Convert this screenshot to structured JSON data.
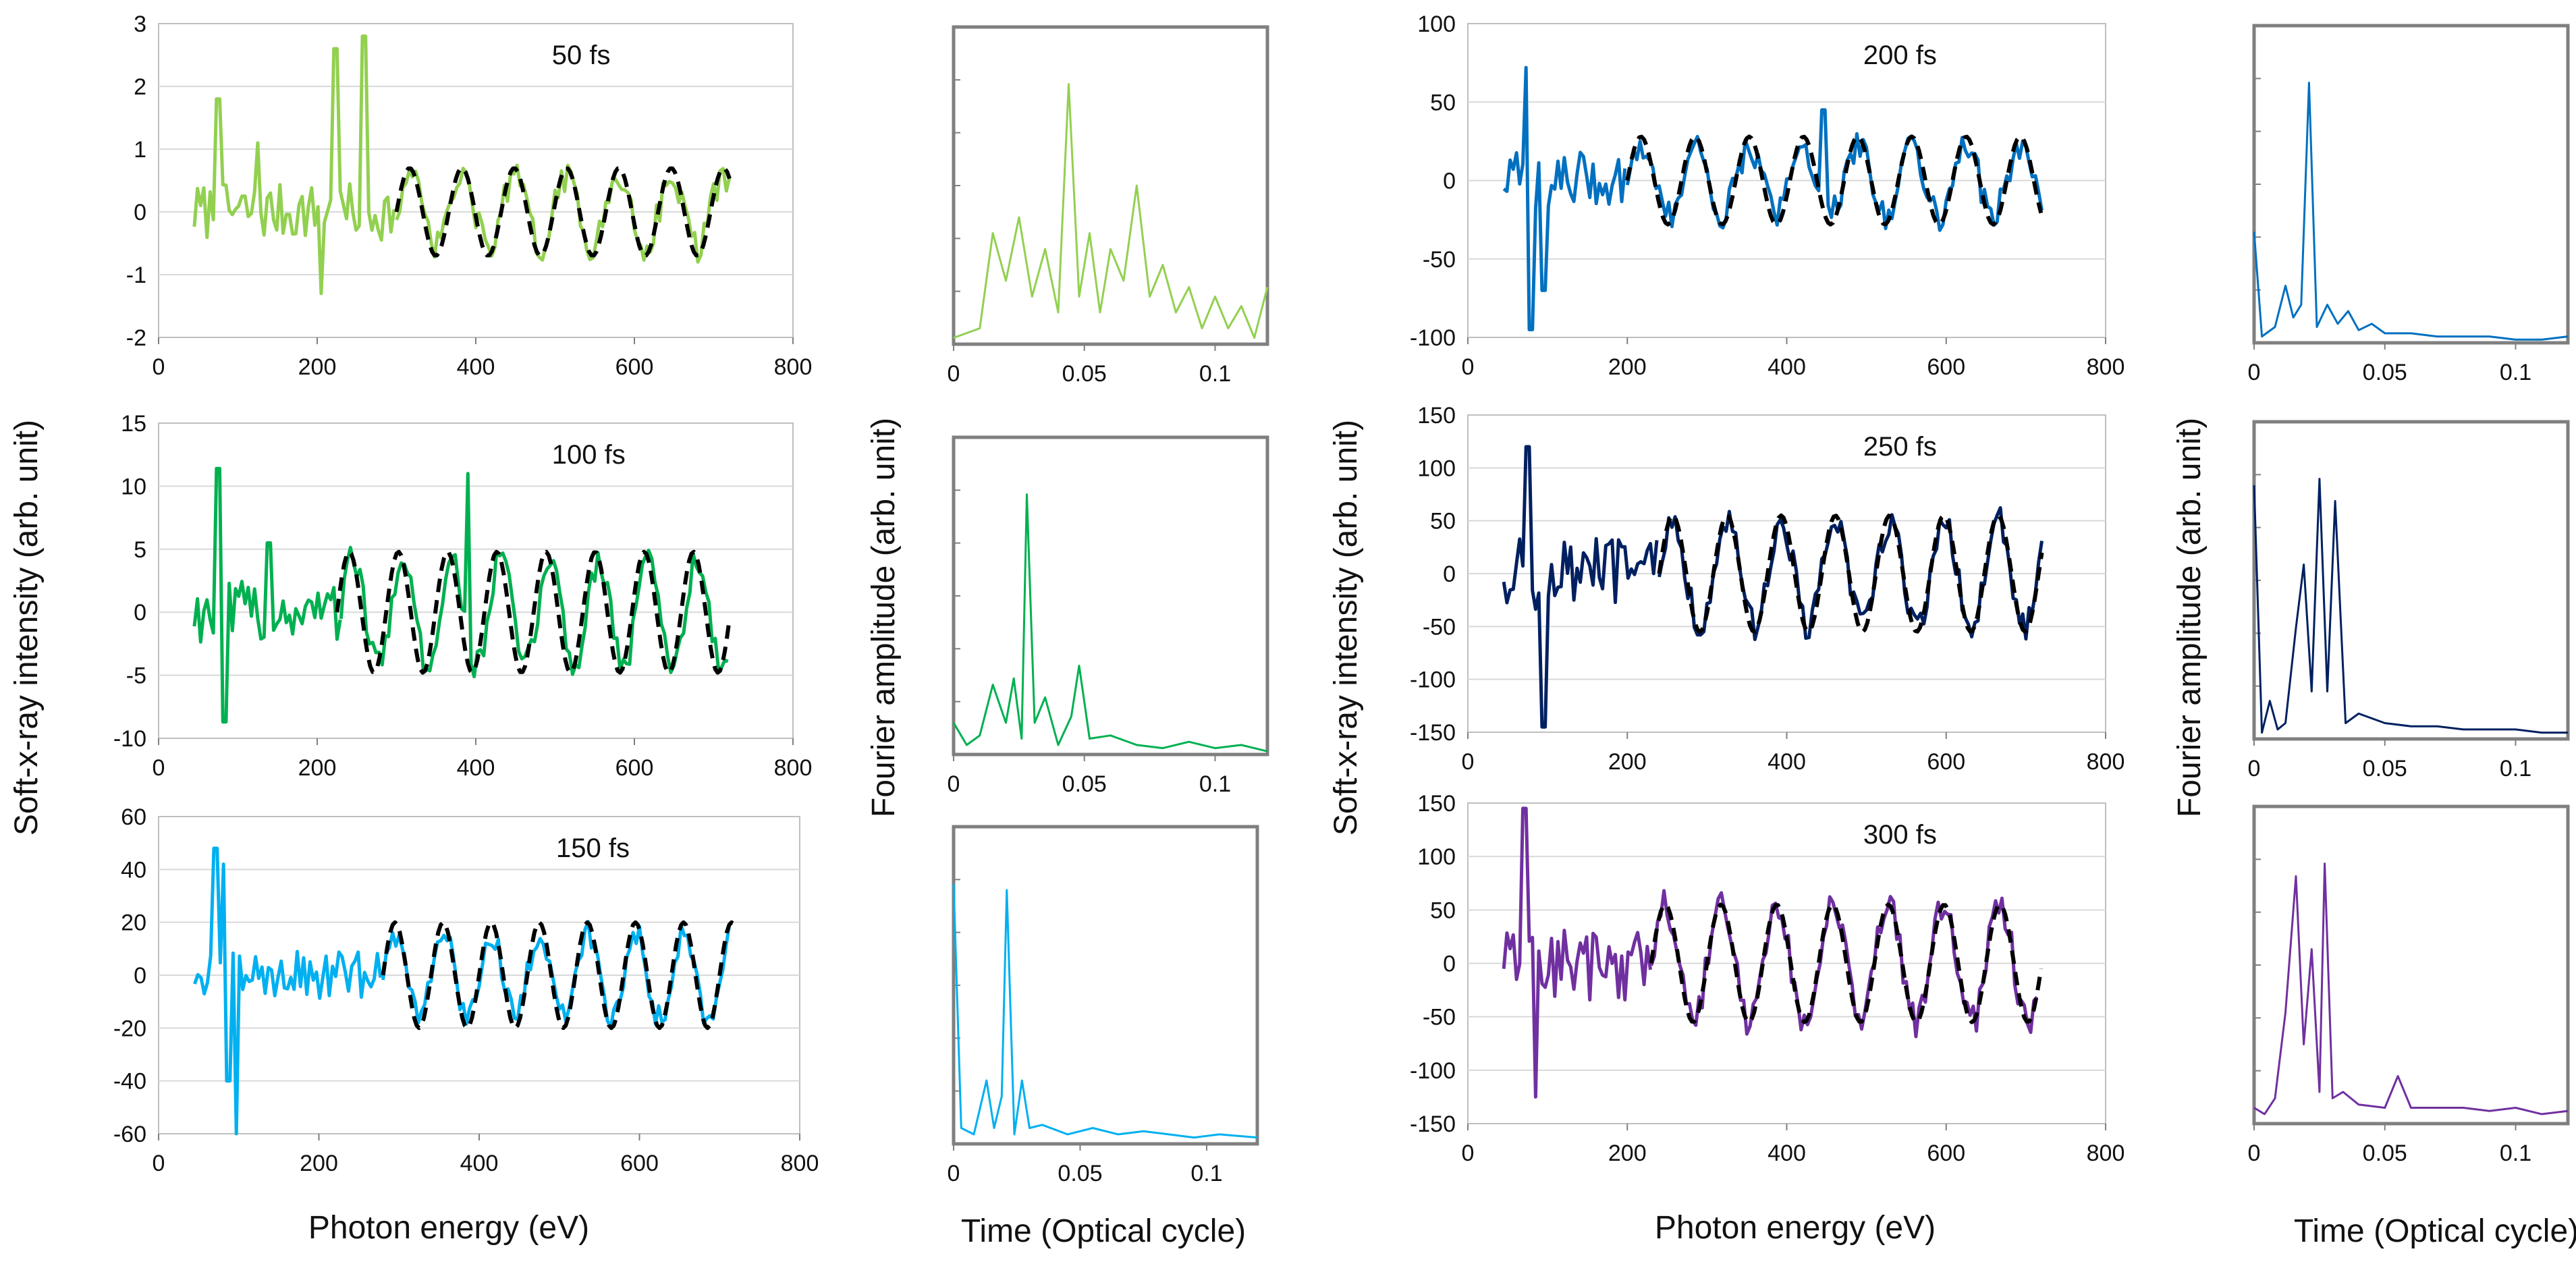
{
  "figure": {
    "xlabel_energy": "Photon energy (eV)",
    "xlabel_time": "Time (Optical cycle)",
    "ylabel_intensity": "Soft-x-ray intensity (arb. unit)",
    "ylabel_fourier": "Fourier amplitude (arb. unit)"
  },
  "chart_data": [
    {
      "type": "line",
      "label": "50 fs",
      "xlim": [
        0,
        800
      ],
      "ylim": [
        -2,
        3
      ],
      "xticks": [
        "0",
        "200",
        "400",
        "600",
        "800"
      ],
      "yticks": [
        "-2",
        "-1",
        "0",
        "1",
        "2",
        "3"
      ],
      "grid": true,
      "series": [
        {
          "color": "#92d050",
          "style": "solid",
          "x": [
            45,
            300
          ],
          "y": [
            0,
            0
          ],
          "noise": 0.45,
          "spikes": [
            [
              75,
              1.8
            ],
            [
              125,
              1.1
            ],
            [
              222,
              2.6
            ],
            [
              258,
              2.8
            ],
            [
              205,
              -1.3
            ]
          ]
        },
        {
          "color": "#92d050",
          "style": "solid",
          "x": [
            300,
            720
          ],
          "y": [
            0,
            0
          ],
          "amp": 0.55,
          "period": 66,
          "noise": 0.25
        },
        {
          "color": "#000000",
          "style": "dashed",
          "x": [
            300,
            720
          ],
          "y": [
            0,
            0
          ],
          "amp": 0.7,
          "period": 66
        }
      ]
    },
    {
      "type": "line",
      "label": "100 fs",
      "xlim": [
        0,
        800
      ],
      "ylim": [
        -10,
        15
      ],
      "xticks": [
        "0",
        "200",
        "400",
        "600",
        "800"
      ],
      "yticks": [
        "-10",
        "-5",
        "0",
        "5",
        "10",
        "15"
      ],
      "grid": true,
      "series": [
        {
          "color": "#00b050",
          "style": "solid",
          "x": [
            45,
            230
          ],
          "y": [
            0,
            0
          ],
          "noise": 2.5,
          "spikes": [
            [
              75,
              11.4
            ],
            [
              82,
              -8.7
            ],
            [
              140,
              5.5
            ]
          ]
        },
        {
          "color": "#00b050",
          "style": "solid",
          "x": [
            230,
            720
          ],
          "y": [
            0,
            0
          ],
          "amp": 4.2,
          "period": 62,
          "noise": 1.2,
          "spikes": [
            [
              390,
              11
            ]
          ]
        },
        {
          "color": "#000000",
          "style": "dashed",
          "x": [
            225,
            720
          ],
          "y": [
            0,
            0
          ],
          "amp": 4.8,
          "period": 62
        }
      ]
    },
    {
      "type": "line",
      "label": "150 fs",
      "xlim": [
        0,
        800
      ],
      "ylim": [
        -60,
        60
      ],
      "xticks": [
        "0",
        "200",
        "400",
        "600",
        "800"
      ],
      "yticks": [
        "-60",
        "-40",
        "-20",
        "0",
        "20",
        "40",
        "60"
      ],
      "grid": true,
      "series": [
        {
          "color": "#00b0f0",
          "style": "solid",
          "x": [
            45,
            280
          ],
          "y": [
            0,
            0
          ],
          "noise": 9,
          "spikes": [
            [
              72,
              48
            ],
            [
              82,
              42
            ],
            [
              97,
              -60
            ],
            [
              88,
              -40
            ]
          ]
        },
        {
          "color": "#00b0f0",
          "style": "solid",
          "x": [
            280,
            715
          ],
          "y": [
            0,
            0
          ],
          "amp": 16,
          "period": 60,
          "noise": 5
        },
        {
          "color": "#000000",
          "style": "dashed",
          "x": [
            280,
            720
          ],
          "y": [
            0,
            0
          ],
          "amp": 20,
          "period": 60
        }
      ]
    },
    {
      "type": "line",
      "label": "200 fs",
      "xlim": [
        0,
        800
      ],
      "ylim": [
        -100,
        100
      ],
      "xticks": [
        "0",
        "200",
        "400",
        "600",
        "800"
      ],
      "yticks": [
        "-100",
        "-50",
        "0",
        "50",
        "100"
      ],
      "grid": true,
      "series": [
        {
          "color": "#0070c0",
          "style": "solid",
          "x": [
            45,
            200
          ],
          "y": [
            0,
            0
          ],
          "noise": 18,
          "spikes": [
            [
              75,
              72
            ],
            [
              80,
              -95
            ],
            [
              95,
              -70
            ]
          ]
        },
        {
          "color": "#0070c0",
          "style": "solid",
          "x": [
            200,
            720
          ],
          "y": [
            0,
            0
          ],
          "amp": 22,
          "period": 68,
          "noise": 10,
          "spikes": [
            [
              445,
              45
            ]
          ]
        },
        {
          "color": "#000000",
          "style": "dashed",
          "x": [
            200,
            720
          ],
          "y": [
            0,
            0
          ],
          "amp": 28,
          "period": 68
        }
      ]
    },
    {
      "type": "line",
      "label": "250 fs",
      "xlim": [
        0,
        800
      ],
      "ylim": [
        -150,
        150
      ],
      "xticks": [
        "0",
        "200",
        "400",
        "600",
        "800"
      ],
      "yticks": [
        "-150",
        "-100",
        "-50",
        "0",
        "50",
        "100",
        "150"
      ],
      "grid": true,
      "series": [
        {
          "color": "#002060",
          "style": "solid",
          "x": [
            45,
            240
          ],
          "y": [
            0,
            0
          ],
          "noise": 35,
          "spikes": [
            [
              75,
              120
            ],
            [
              95,
              -145
            ]
          ]
        },
        {
          "color": "#002060",
          "style": "solid",
          "x": [
            240,
            720
          ],
          "y": [
            0,
            0
          ],
          "amp": 50,
          "period": 68,
          "noise": 15
        },
        {
          "color": "#000000",
          "style": "dashed",
          "x": [
            240,
            720
          ],
          "y": [
            0,
            0
          ],
          "amp": 55,
          "period": 68
        }
      ]
    },
    {
      "type": "line",
      "label": "300 fs",
      "xlim": [
        0,
        800
      ],
      "ylim": [
        -150,
        150
      ],
      "xticks": [
        "0",
        "200",
        "400",
        "600",
        "800"
      ],
      "yticks": [
        "-150",
        "-100",
        "-50",
        "0",
        "50",
        "100",
        "150"
      ],
      "grid": true,
      "series": [
        {
          "color": "#7030a0",
          "style": "solid",
          "x": [
            45,
            230
          ],
          "y": [
            0,
            0
          ],
          "noise": 35,
          "spikes": [
            [
              70,
              145
            ],
            [
              85,
              -125
            ]
          ]
        },
        {
          "color": "#7030a0",
          "style": "solid",
          "x": [
            230,
            715
          ],
          "y": [
            0,
            0
          ],
          "amp": 55,
          "period": 70,
          "noise": 15
        },
        {
          "color": "#000000",
          "style": "dashed",
          "x": [
            230,
            720
          ],
          "y": [
            0,
            0
          ],
          "amp": 55,
          "period": 70
        }
      ]
    },
    {
      "type": "line",
      "xlim": [
        0,
        0.12
      ],
      "xticks": [
        "0",
        "0.05",
        "0.1"
      ],
      "series": [
        {
          "color": "#92d050",
          "x": [
            0,
            0.01,
            0.015,
            0.02,
            0.025,
            0.03,
            0.035,
            0.04,
            0.044,
            0.048,
            0.052,
            0.056,
            0.06,
            0.065,
            0.07,
            0.075,
            0.08,
            0.085,
            0.09,
            0.095,
            0.1,
            0.105,
            0.11,
            0.115,
            0.12
          ],
          "y": [
            0.02,
            0.05,
            0.35,
            0.2,
            0.4,
            0.15,
            0.3,
            0.1,
            0.82,
            0.15,
            0.35,
            0.1,
            0.3,
            0.2,
            0.5,
            0.15,
            0.25,
            0.1,
            0.18,
            0.05,
            0.15,
            0.05,
            0.12,
            0.02,
            0.18
          ]
        }
      ]
    },
    {
      "type": "line",
      "xlim": [
        0,
        0.12
      ],
      "xticks": [
        "0",
        "0.05",
        "0.1"
      ],
      "series": [
        {
          "color": "#00b050",
          "x": [
            0,
            0.005,
            0.01,
            0.015,
            0.02,
            0.023,
            0.026,
            0.028,
            0.031,
            0.035,
            0.04,
            0.045,
            0.048,
            0.052,
            0.06,
            0.07,
            0.08,
            0.09,
            0.1,
            0.11,
            0.12
          ],
          "y": [
            0.1,
            0.03,
            0.06,
            0.22,
            0.1,
            0.24,
            0.05,
            0.82,
            0.1,
            0.18,
            0.03,
            0.12,
            0.28,
            0.05,
            0.06,
            0.03,
            0.02,
            0.04,
            0.02,
            0.03,
            0.01
          ]
        }
      ]
    },
    {
      "type": "line",
      "xlim": [
        0,
        0.12
      ],
      "xticks": [
        "0",
        "0.05",
        "0.1"
      ],
      "series": [
        {
          "color": "#00b0f0",
          "x": [
            0,
            0.003,
            0.008,
            0.013,
            0.016,
            0.019,
            0.021,
            0.024,
            0.027,
            0.03,
            0.035,
            0.045,
            0.055,
            0.065,
            0.075,
            0.085,
            0.095,
            0.105,
            0.12
          ],
          "y": [
            0.82,
            0.05,
            0.03,
            0.2,
            0.05,
            0.15,
            0.8,
            0.03,
            0.2,
            0.05,
            0.06,
            0.03,
            0.05,
            0.03,
            0.04,
            0.03,
            0.02,
            0.03,
            0.02
          ]
        }
      ]
    },
    {
      "type": "line",
      "xlim": [
        0,
        0.12
      ],
      "xticks": [
        "0",
        "0.05",
        "0.1"
      ],
      "series": [
        {
          "color": "#0070c0",
          "x": [
            0,
            0.003,
            0.008,
            0.012,
            0.015,
            0.018,
            0.021,
            0.024,
            0.028,
            0.032,
            0.036,
            0.04,
            0.045,
            0.05,
            0.06,
            0.07,
            0.08,
            0.09,
            0.1,
            0.11,
            0.12
          ],
          "y": [
            0.35,
            0.02,
            0.05,
            0.18,
            0.08,
            0.12,
            0.82,
            0.05,
            0.12,
            0.06,
            0.1,
            0.04,
            0.06,
            0.03,
            0.03,
            0.02,
            0.02,
            0.02,
            0.01,
            0.01,
            0.02
          ]
        }
      ]
    },
    {
      "type": "line",
      "xlim": [
        0,
        0.12
      ],
      "xticks": [
        "0",
        "0.05",
        "0.1"
      ],
      "series": [
        {
          "color": "#002060",
          "x": [
            0,
            0.003,
            0.006,
            0.009,
            0.012,
            0.016,
            0.019,
            0.022,
            0.025,
            0.028,
            0.031,
            0.035,
            0.04,
            0.05,
            0.06,
            0.07,
            0.08,
            0.09,
            0.1,
            0.11,
            0.12
          ],
          "y": [
            0.8,
            0.02,
            0.12,
            0.03,
            0.05,
            0.35,
            0.55,
            0.15,
            0.82,
            0.15,
            0.75,
            0.05,
            0.08,
            0.05,
            0.04,
            0.04,
            0.03,
            0.03,
            0.03,
            0.02,
            0.02
          ]
        }
      ]
    },
    {
      "type": "line",
      "xlim": [
        0,
        0.12
      ],
      "xticks": [
        "0",
        "0.05",
        "0.1"
      ],
      "series": [
        {
          "color": "#7030a0",
          "x": [
            0,
            0.004,
            0.008,
            0.012,
            0.016,
            0.019,
            0.022,
            0.025,
            0.027,
            0.03,
            0.034,
            0.04,
            0.05,
            0.055,
            0.06,
            0.07,
            0.08,
            0.09,
            0.1,
            0.11,
            0.12
          ],
          "y": [
            0.05,
            0.03,
            0.08,
            0.35,
            0.78,
            0.25,
            0.55,
            0.1,
            0.82,
            0.08,
            0.1,
            0.06,
            0.05,
            0.15,
            0.05,
            0.05,
            0.05,
            0.04,
            0.05,
            0.03,
            0.04
          ]
        }
      ]
    }
  ]
}
